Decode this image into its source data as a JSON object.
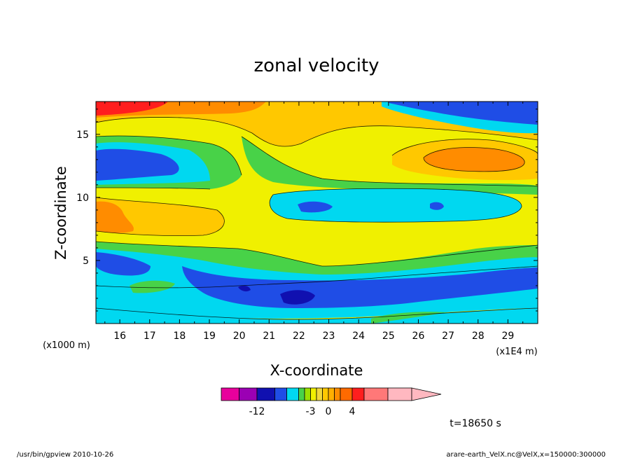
{
  "chart_data": {
    "type": "heatmap",
    "title": "zonal velocity",
    "xlabel": "X-coordinate",
    "ylabel": "Z-coordinate",
    "x_units": "(x1E4 m)",
    "y_units": "(x1000 m)",
    "xlim": [
      15.2,
      30.0
    ],
    "ylim": [
      0.0,
      17.6
    ],
    "x_ticks": [
      "16",
      "17",
      "18",
      "19",
      "20",
      "21",
      "22",
      "23",
      "24",
      "25",
      "26",
      "27",
      "28",
      "29"
    ],
    "y_ticks": [
      "5",
      "10",
      "15"
    ],
    "grid": false,
    "colorbar": {
      "tick_labels": [
        "-12",
        "-3",
        "0",
        "4"
      ],
      "level_edges": [
        -18,
        -15,
        -12,
        -9,
        -7,
        -5,
        -4,
        -3,
        -2,
        -1,
        0,
        1,
        2,
        4,
        6,
        10,
        14
      ],
      "colors": [
        "#e8009c",
        "#9b00b4",
        "#1010b0",
        "#1f4de6",
        "#00d8f0",
        "#48d248",
        "#9be000",
        "#f0f000",
        "#f0d83c",
        "#ffc800",
        "#ffb000",
        "#ff8c00",
        "#ff6a00",
        "#ff1e1e",
        "#ff7878",
        "#ffb8c0"
      ],
      "extend": "max"
    },
    "contour_bands": [
      {
        "level": -10,
        "color": "#1010b0",
        "regions": [
          {
            "x": [
              21.5,
              22.0,
              22.5,
              22.0
            ],
            "z": [
              1.8,
              2.4,
              2.0,
              1.5
            ]
          },
          {
            "x": [
              22.0,
              22.5
            ],
            "z": [
              9.0,
              9.8
            ]
          },
          {
            "x": [
              26.3,
              26.7
            ],
            "z": [
              9.0,
              9.8
            ]
          }
        ]
      },
      {
        "level": -7,
        "color": "#1f4de6",
        "regions": [
          {
            "x": [
              15.2,
              18.5
            ],
            "z": [
              11.5,
              14.0
            ]
          },
          {
            "x": [
              15.6,
              18.0
            ],
            "z": [
              4.0,
              5.4
            ]
          },
          {
            "x": [
              18.5,
              25.5
            ],
            "z": [
              1.0,
              3.5
            ]
          },
          {
            "x": [
              24.5,
              30.0
            ],
            "z": [
              15.5,
              17.6
            ]
          }
        ]
      },
      {
        "level": -4,
        "color": "#00d8f0",
        "regions": [
          {
            "x": [
              15.2,
              19.5
            ],
            "z": [
              10.5,
              14.5
            ]
          },
          {
            "x": [
              20.5,
              30.0
            ],
            "z": [
              8.0,
              10.8
            ]
          },
          {
            "x": [
              15.2,
              30.0
            ],
            "z": [
              0.8,
              6.5
            ]
          }
        ]
      },
      {
        "level": -1,
        "color": "#48d248",
        "regions": [
          {
            "x": [
              15.2,
              21.5
            ],
            "z": [
              10.0,
              15.0
            ]
          },
          {
            "x": [
              20.0,
              30.0
            ],
            "z": [
              6.0,
              11.5
            ]
          }
        ]
      },
      {
        "level": 1,
        "color": "#f0f000",
        "regions": [
          {
            "x": [
              15.2,
              30.0
            ],
            "z": [
              6.0,
              11.0
            ]
          },
          {
            "x": [
              19.5,
              30.0
            ],
            "z": [
              11.5,
              16.5
            ]
          }
        ]
      },
      {
        "level": 3,
        "color": "#ffc800",
        "regions": [
          {
            "x": [
              15.2,
              19.5
            ],
            "z": [
              7.5,
              10.5
            ]
          },
          {
            "x": [
              20.0,
              30.0
            ],
            "z": [
              11.5,
              16.0
            ]
          }
        ]
      },
      {
        "level": 5,
        "color": "#ff8c00",
        "regions": [
          {
            "x": [
              15.2,
              16.5
            ],
            "z": [
              7.8,
              9.8
            ]
          },
          {
            "x": [
              25.5,
              29.5
            ],
            "z": [
              12.0,
              14.5
            ]
          },
          {
            "x": [
              15.2,
              20.0
            ],
            "z": [
              15.8,
              17.6
            ]
          }
        ]
      },
      {
        "level": 8,
        "color": "#ff1e1e",
        "regions": [
          {
            "x": [
              15.2,
              17.5
            ],
            "z": [
              16.6,
              17.6
            ]
          }
        ]
      }
    ],
    "annotation": "t=18650 s"
  },
  "footer": {
    "left": "/usr/bin/gpview   2010-10-26",
    "right": "arare-earth_VelX.nc@VelX,x=150000:300000"
  }
}
